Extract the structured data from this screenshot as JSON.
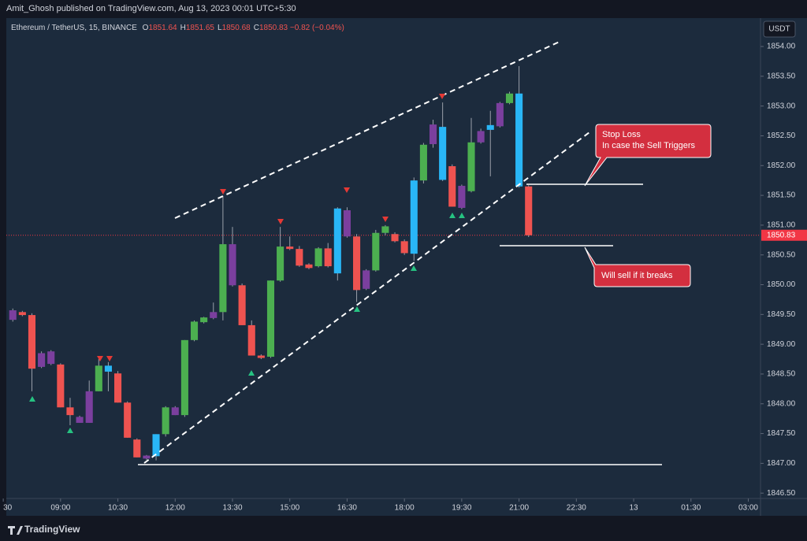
{
  "header": {
    "published": "Amit_Ghosh published on TradingView.com, Aug 13, 2023 00:01 UTC+5:30",
    "symbol": "Ethereum / TetherUS, 15, BINANCE",
    "ohlc": [
      {
        "label": "O",
        "value": 1851.64
      },
      {
        "label": "H",
        "value": 1851.65
      },
      {
        "label": "L",
        "value": 1850.68
      },
      {
        "label": "C",
        "value": 1850.83
      }
    ],
    "change": "−0.82 (−0.04%)",
    "currency": "USDT"
  },
  "chart_data": {
    "type": "candlestick",
    "x": [
      7.75,
      8,
      8.25,
      8.5,
      8.75,
      9,
      9.25,
      9.5,
      9.75,
      10,
      10.25,
      10.5,
      10.75,
      11,
      11.25,
      11.5,
      11.75,
      12,
      12.25,
      12.5,
      12.75,
      13,
      13.25,
      13.5,
      13.75,
      14,
      14.25,
      14.5,
      14.75,
      15,
      15.25,
      15.5,
      15.75,
      16,
      16.25,
      16.5,
      16.75,
      17,
      17.25,
      17.5,
      17.75,
      18,
      18.25,
      18.5,
      18.75,
      19,
      19.25,
      19.5,
      19.75,
      20,
      20.25,
      20.5,
      20.75,
      21,
      21.25
    ],
    "open": [
      1849.41,
      1849.54,
      1849.49,
      1848.62,
      1848.88,
      1848.66,
      1847.94,
      1847.78,
      1847.68,
      1848.21,
      1848.64,
      1848.51,
      1848.02,
      1847.4,
      1847.08,
      1847.12,
      1847.49,
      1847.94,
      1847.81,
      1849.07,
      1849.37,
      1849.44,
      1849.54,
      1850.68,
      1849.99,
      1849.32,
      1848.81,
      1848.79,
      1850.07,
      1850.64,
      1850.6,
      1850.34,
      1850.31,
      1850.61,
      1850.19,
      1851.25,
      1850.81,
      1849.93,
      1850.24,
      1850.87,
      1850.85,
      1850.73,
      1850.52,
      1851.75,
      1852.36,
      1852.65,
      1851.99,
      1851.29,
      1851.57,
      1852.39,
      1852.6,
      1852.66,
      1853.05,
      1853.21,
      1851.65
    ],
    "high": [
      1849.6,
      1849.56,
      1849.52,
      1848.88,
      1848.9,
      1848.68,
      1848.1,
      1847.8,
      1848.39,
      1848.75,
      1848.7,
      1848.55,
      1848.04,
      1847.42,
      1847.14,
      1847.49,
      1847.96,
      1847.96,
      1849.07,
      1849.4,
      1849.46,
      1849.7,
      1851.49,
      1850.97,
      1850.02,
      1849.4,
      1848.83,
      1850.07,
      1850.97,
      1850.81,
      1850.65,
      1850.36,
      1850.63,
      1850.7,
      1851.3,
      1851.3,
      1850.85,
      1850.26,
      1850.92,
      1851.0,
      1850.88,
      1850.76,
      1851.8,
      1852.38,
      1852.77,
      1853.06,
      1852.02,
      1851.68,
      1852.8,
      1852.62,
      1852.92,
      1853.07,
      1853.24,
      1853.67,
      1851.67
    ],
    "low": [
      1849.38,
      1849.47,
      1848.21,
      1848.6,
      1848.65,
      1847.94,
      1847.64,
      1847.68,
      1847.68,
      1848.21,
      1848.21,
      1848.02,
      1847.43,
      1847.1,
      1847.06,
      1847.05,
      1847.45,
      1847.81,
      1847.78,
      1849.05,
      1849.35,
      1849.42,
      1849.4,
      1849.97,
      1849.32,
      1848.81,
      1848.75,
      1848.77,
      1850.05,
      1850.58,
      1850.3,
      1850.26,
      1850.29,
      1850.29,
      1850.07,
      1850.79,
      1849.71,
      1849.91,
      1850.22,
      1850.83,
      1850.71,
      1850.5,
      1850.4,
      1851.7,
      1852.3,
      1851.74,
      1851.31,
      1851.27,
      1851.55,
      1852.37,
      1851.82,
      1852.64,
      1853.03,
      1851.63,
      1850.8
    ],
    "close": [
      1849.57,
      1849.49,
      1848.59,
      1848.85,
      1848.67,
      1847.94,
      1847.81,
      1847.68,
      1848.21,
      1848.64,
      1848.54,
      1848.02,
      1847.43,
      1847.1,
      1847.13,
      1847.49,
      1847.94,
      1847.81,
      1849.07,
      1849.38,
      1849.45,
      1849.54,
      1850.68,
      1849.99,
      1849.32,
      1848.81,
      1848.77,
      1850.07,
      1850.64,
      1850.6,
      1850.32,
      1850.28,
      1850.61,
      1850.31,
      1851.28,
      1850.81,
      1849.91,
      1850.24,
      1850.87,
      1850.98,
      1850.73,
      1850.53,
      1851.75,
      1852.35,
      1852.69,
      1851.76,
      1851.31,
      1851.66,
      1852.39,
      1852.58,
      1852.68,
      1853.05,
      1853.21,
      1851.65,
      1850.83
    ],
    "colors": [
      "#7b3f9e",
      "#ef5350",
      "#ef5350",
      "#7b3f9e",
      "#7b3f9e",
      "#ef5350",
      "#ef5350",
      "#7b3f9e",
      "#7b3f9e",
      "#4caf50",
      "#29b6f6",
      "#ef5350",
      "#ef5350",
      "#ef5350",
      "#7b3f9e",
      "#29b6f6",
      "#4caf50",
      "#7b3f9e",
      "#4caf50",
      "#4caf50",
      "#4caf50",
      "#7b3f9e",
      "#4caf50",
      "#7b3f9e",
      "#ef5350",
      "#ef5350",
      "#ef5350",
      "#4caf50",
      "#4caf50",
      "#ef5350",
      "#ef5350",
      "#ef5350",
      "#4caf50",
      "#ef5350",
      "#29b6f6",
      "#7b3f9e",
      "#ef5350",
      "#7b3f9e",
      "#4caf50",
      "#4caf50",
      "#ef5350",
      "#ef5350",
      "#29b6f6",
      "#4caf50",
      "#7b3f9e",
      "#29b6f6",
      "#ef5350",
      "#7b3f9e",
      "#4caf50",
      "#7b3f9e",
      "#29b6f6",
      "#7b3f9e",
      "#4caf50",
      "#29b6f6",
      "#ef5350"
    ],
    "last_price_color": "#f23645",
    "xlim": [
      7.58,
      27.32
    ],
    "xticks": [
      {
        "value": 7.5,
        "label": "30"
      },
      {
        "value": 9,
        "label": "09:00"
      },
      {
        "value": 10.5,
        "label": "10:30"
      },
      {
        "value": 12,
        "label": "12:00"
      },
      {
        "value": 13.5,
        "label": "13:30"
      },
      {
        "value": 15,
        "label": "15:00"
      },
      {
        "value": 16.5,
        "label": "16:30"
      },
      {
        "value": 18,
        "label": "18:00"
      },
      {
        "value": 19.5,
        "label": "19:30"
      },
      {
        "value": 21,
        "label": "21:00"
      },
      {
        "value": 22.5,
        "label": "22:30"
      },
      {
        "value": 24,
        "label": "13"
      },
      {
        "value": 25.5,
        "label": "01:30"
      },
      {
        "value": 27,
        "label": "03:00"
      }
    ],
    "ylim": [
      1846.41,
      1854.45
    ],
    "yticks": [
      {
        "value": 1846.5,
        "label": "1846.50"
      },
      {
        "value": 1847,
        "label": "1847.00"
      },
      {
        "value": 1847.5,
        "label": "1847.50"
      },
      {
        "value": 1848,
        "label": "1848.00"
      },
      {
        "value": 1848.5,
        "label": "1848.50"
      },
      {
        "value": 1849,
        "label": "1849.00"
      },
      {
        "value": 1849.5,
        "label": "1849.50"
      },
      {
        "value": 1850,
        "label": "1850.00"
      },
      {
        "value": 1850.5,
        "label": "1850.50"
      },
      {
        "value": 1851,
        "label": "1851.00"
      },
      {
        "value": 1851.5,
        "label": "1851.50"
      },
      {
        "value": 1852,
        "label": "1852.00"
      },
      {
        "value": 1852.5,
        "label": "1852.50"
      },
      {
        "value": 1853,
        "label": "1853.00"
      },
      {
        "value": 1853.5,
        "label": "1853.50"
      },
      {
        "value": 1854,
        "label": "1854.00"
      }
    ],
    "grid": false,
    "annotations": [
      "Stop Loss",
      "In case the Sell Triggers",
      "Will sell if it breaks"
    ]
  },
  "footer": {
    "brand": "TradingView"
  }
}
